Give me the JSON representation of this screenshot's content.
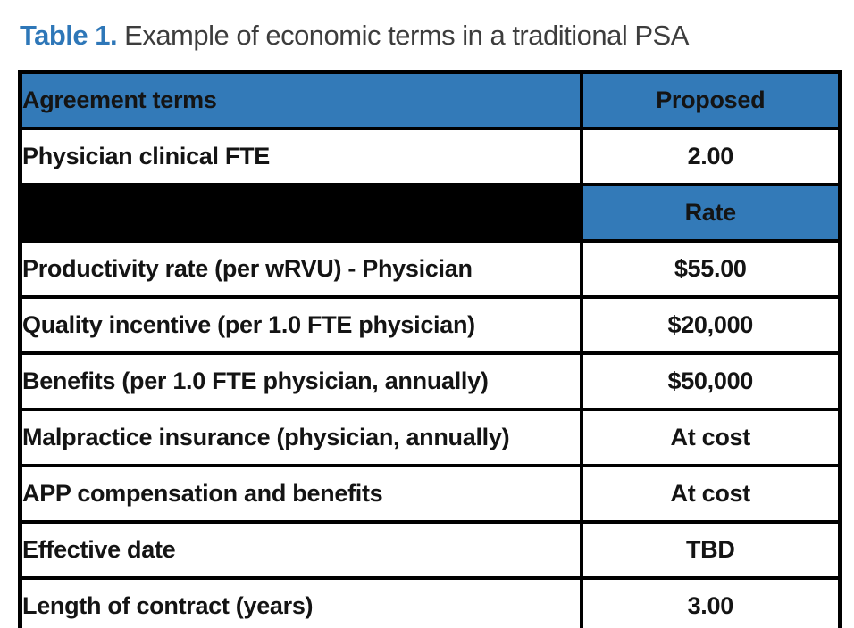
{
  "title": {
    "prefix": "Table 1.",
    "text": "Example of economic terms in a traditional PSA"
  },
  "chart_data": {
    "type": "table",
    "title": "Table 1. Example of economic terms in a traditional PSA",
    "columns": [
      "Agreement terms",
      "Proposed"
    ],
    "rate_subheader": "Rate",
    "rows": [
      {
        "term": "Physician clinical FTE",
        "value": "2.00"
      },
      {
        "term": "Productivity rate (per wRVU) - Physician",
        "value": "$55.00"
      },
      {
        "term": "Quality incentive (per 1.0 FTE physician)",
        "value": "$20,000"
      },
      {
        "term": "Benefits (per 1.0 FTE physician, annually)",
        "value": "$50,000"
      },
      {
        "term": "Malpractice insurance (physician, annually)",
        "value": "At cost"
      },
      {
        "term": "APP compensation and benefits",
        "value": "At cost"
      },
      {
        "term": "Effective date",
        "value": "TBD"
      },
      {
        "term": "Length of contract (years)",
        "value": "3.00"
      }
    ]
  },
  "colors": {
    "header_blue": "#337ab8",
    "title_blue": "#2e77b8",
    "border_black": "#000000",
    "title_text": "#3d3d3d",
    "cell_text": "#141414"
  }
}
